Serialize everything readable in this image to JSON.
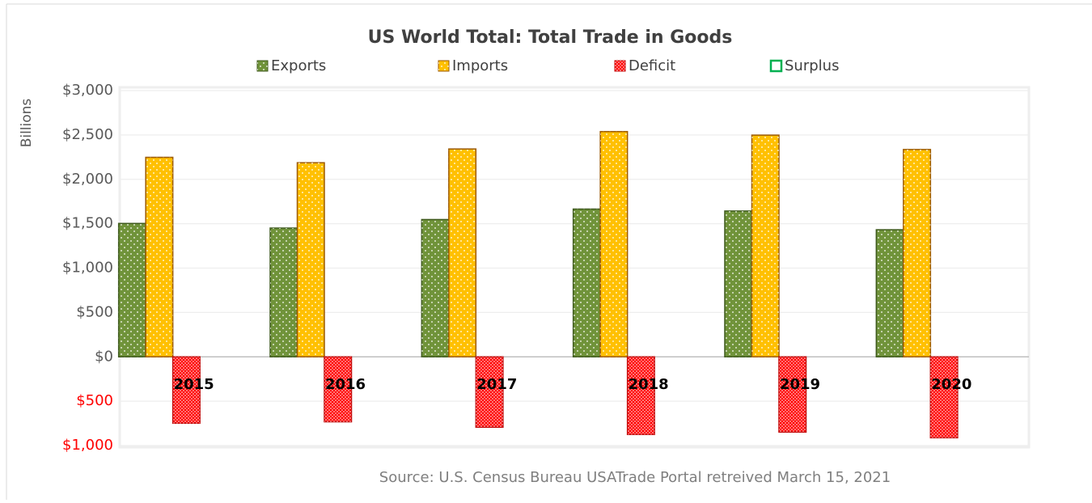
{
  "chart_data": {
    "type": "bar",
    "title": "US World Total: Total Trade in Goods",
    "y_label": "Billions",
    "source": "Source: U.S. Census Bureau USATrade Portal retreived March 15, 2021",
    "categories": [
      "2015",
      "2016",
      "2017",
      "2018",
      "2019",
      "2020"
    ],
    "series": [
      {
        "name": "Exports",
        "color": "#70933a",
        "values": [
          1503,
          1451,
          1547,
          1665,
          1643,
          1432
        ]
      },
      {
        "name": "Imports",
        "color": "#ffc000",
        "values": [
          2248,
          2187,
          2342,
          2538,
          2498,
          2336
        ]
      },
      {
        "name": "Deficit",
        "color": "#ff0000",
        "values": [
          -748,
          -732,
          -793,
          -875,
          -848,
          -912
        ]
      },
      {
        "name": "Surplus",
        "color": "#00b050",
        "values": [
          0,
          0,
          0,
          0,
          0,
          0
        ]
      }
    ],
    "ylim": [
      -1000,
      3000
    ],
    "yticks": [
      {
        "value": -1000,
        "label": "$1,000"
      },
      {
        "value": -500,
        "label": "$500"
      },
      {
        "value": 0,
        "label": "$0"
      },
      {
        "value": 500,
        "label": "$500"
      },
      {
        "value": 1000,
        "label": "$1,000"
      },
      {
        "value": 1500,
        "label": "$1,500"
      },
      {
        "value": 2000,
        "label": "$2,000"
      },
      {
        "value": 2500,
        "label": "$2,500"
      },
      {
        "value": 3000,
        "label": "$3,000"
      }
    ],
    "negative_tick_color": "#ff0000",
    "grid": true,
    "legend": "top"
  }
}
